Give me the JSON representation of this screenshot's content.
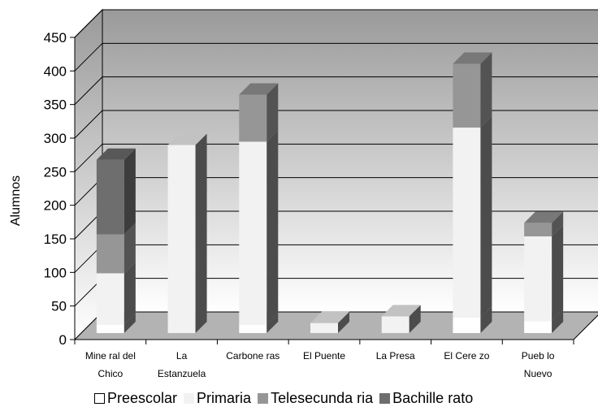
{
  "chart_data": {
    "type": "bar",
    "stacked": true,
    "three_d": true,
    "ylabel": "Alumnos",
    "ylim": [
      0,
      450
    ],
    "yticks": [
      0,
      50,
      100,
      150,
      200,
      250,
      300,
      350,
      400,
      450
    ],
    "grid": true,
    "legend_position": "bottom",
    "categories": [
      [
        "Mine ral del",
        "Chico"
      ],
      [
        "La",
        "Estanzuela"
      ],
      [
        "Carbone ras"
      ],
      [
        "El Puente"
      ],
      [
        "La Presa"
      ],
      [
        "El Cere zo"
      ],
      [
        "Pueb lo",
        "Nuevo"
      ]
    ],
    "series": [
      {
        "name": "Preescolar",
        "color": "#ffffff",
        "values": [
          13,
          0,
          13,
          0,
          0,
          23,
          18
        ]
      },
      {
        "name": "Primaria",
        "color": "#f2f2f2",
        "values": [
          76,
          280,
          272,
          15,
          25,
          283,
          126
        ]
      },
      {
        "name": "Telesecunda ria",
        "color": "#969696",
        "values": [
          58,
          0,
          70,
          0,
          0,
          95,
          20
        ]
      },
      {
        "name": "Bachille rato",
        "color": "#6e6e6e",
        "values": [
          111,
          0,
          0,
          0,
          0,
          0,
          0
        ]
      }
    ]
  }
}
